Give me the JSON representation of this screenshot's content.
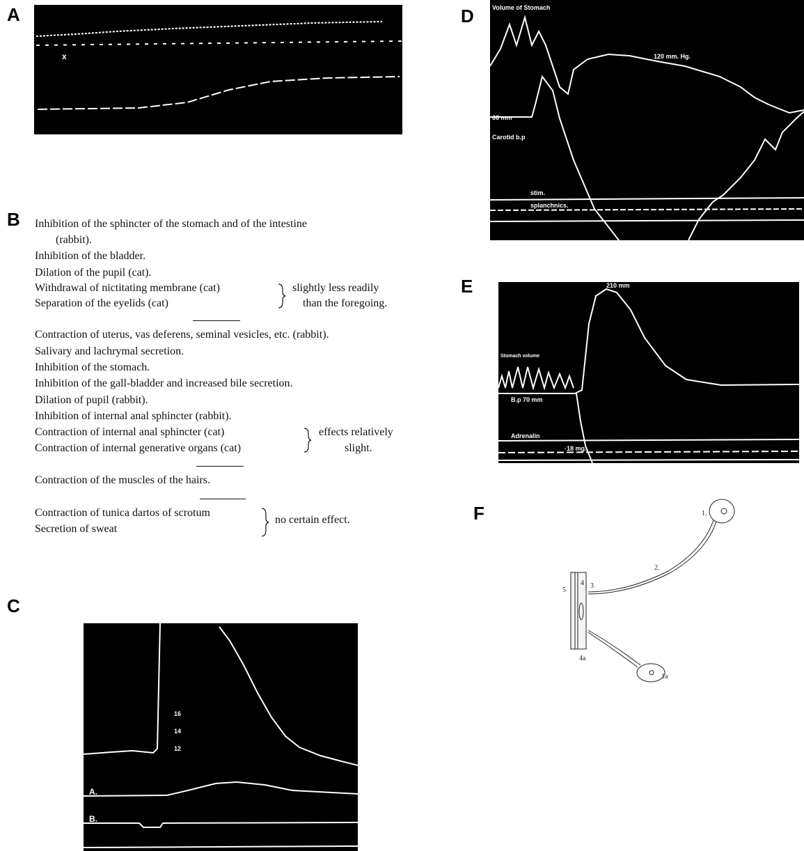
{
  "panels": [
    {
      "label": "A",
      "marks": [
        "x"
      ]
    },
    {
      "label": "B",
      "groups": [
        {
          "lines": [
            "Inhibition of the sphincter of the stomach and of the intestine",
            "(rabbit).",
            "Inhibition of the bladder.",
            "Dilation of the pupil (cat)."
          ],
          "braced": {
            "lines": [
              "Withdrawal of nictitating membrane (cat)",
              "Separation of the eyelids (cat)"
            ],
            "note": [
              "slightly less readily",
              "than the foregoing."
            ]
          }
        },
        {
          "lines": [
            "Contraction of uterus, vas deferens, seminal vesicles, etc. (rabbit).",
            "Salivary and lachrymal secretion.",
            "Inhibition of the stomach.",
            "Inhibition of the gall-bladder and increased bile secretion.",
            "Dilation of pupil (rabbit).",
            "Inhibition of internal anal sphincter (rabbit)."
          ],
          "braced": {
            "lines": [
              "Contraction of internal anal sphincter (cat)",
              "Contraction of internal generative organs (cat)"
            ],
            "note": [
              "effects relatively",
              "slight."
            ]
          }
        },
        {
          "lines": [
            "Contraction of the muscles of the hairs."
          ]
        },
        {
          "braced": {
            "lines": [
              "Contraction of tunica dartos of scrotum",
              "Secretion of sweat"
            ],
            "note": [
              "no certain effect."
            ]
          }
        }
      ]
    },
    {
      "label": "C",
      "marks": [
        "16",
        "14",
        "12",
        "A.",
        "B."
      ]
    },
    {
      "label": "D",
      "marks": [
        "Volume of Stomach",
        "120 mm. Hg.",
        "66 mm",
        "Carotid b.p",
        "stim.",
        "splanchnics."
      ]
    },
    {
      "label": "E",
      "marks": [
        "210 mm",
        "Stomach volume",
        "B.p 70 mm",
        "Adrenalin",
        "·18 mg."
      ]
    },
    {
      "label": "F",
      "marks": [
        "1.",
        "2.",
        "3",
        "4",
        "5",
        "4a",
        "1a"
      ]
    }
  ]
}
